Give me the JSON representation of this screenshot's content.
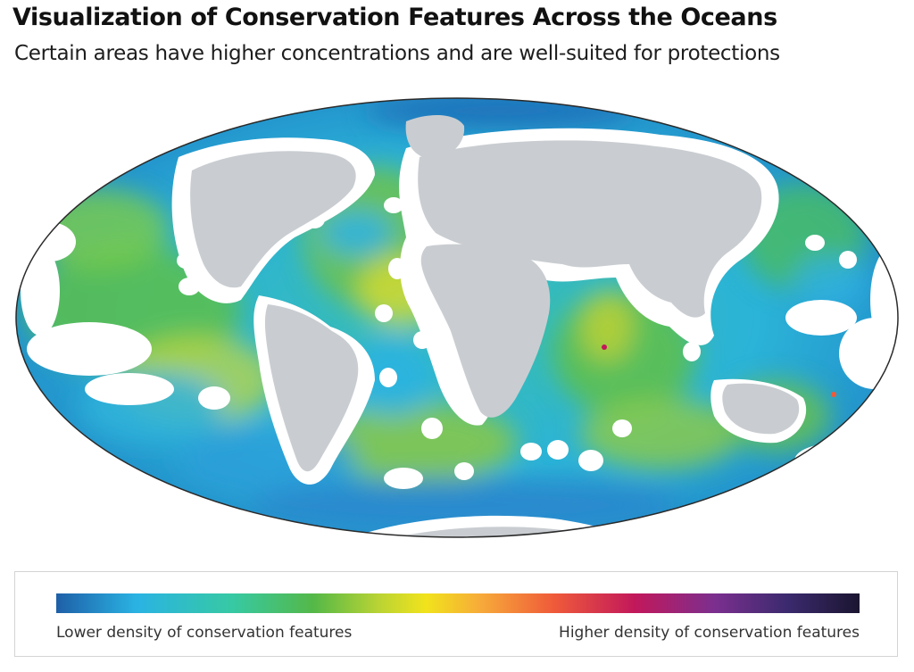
{
  "header": {
    "title": "Visualization of Conservation Features Across the Oceans",
    "subtitle": "Certain areas have higher concentrations and are well-suited for protections"
  },
  "map": {
    "projection": "Mollweide",
    "ocean_base_color": "#2fb6d9",
    "land_color": "#c9cdd1",
    "excluded_zone_color": "#ffffff",
    "gradient_colors": [
      "#1e5fa8",
      "#2ab3e3",
      "#37c9a3",
      "#54b848",
      "#b8d334",
      "#f1e31c",
      "#f7a93a",
      "#ef5a3a",
      "#c2185b",
      "#7b2f8f",
      "#3b2a6e",
      "#1b1530"
    ]
  },
  "legend": {
    "low_label": "Lower density of conservation features",
    "high_label": "Higher density of conservation features"
  }
}
